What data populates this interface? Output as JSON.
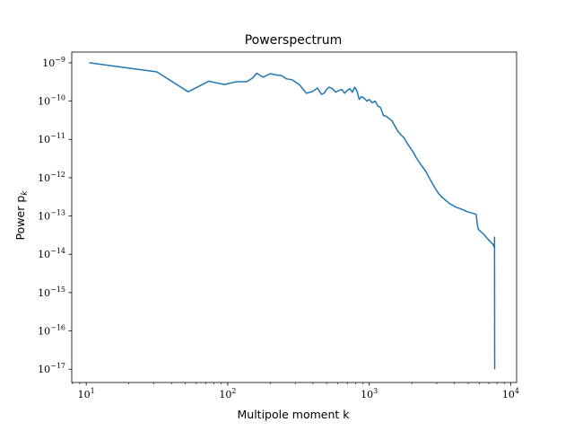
{
  "chart_data": {
    "type": "line",
    "title": "Powerspectrum",
    "xlabel": "Multipole moment k",
    "ylabel_main": "Power p",
    "ylabel_sub": "k",
    "x_scale": "log",
    "y_scale": "log",
    "xlim": [
      7.9,
      11000
    ],
    "ylim": [
      4.5e-18,
      1.9e-09
    ],
    "grid": false,
    "line_color": "#1f77b4",
    "x_ticks": [
      {
        "value": 10,
        "base": "10",
        "exp": "1"
      },
      {
        "value": 100,
        "base": "10",
        "exp": "2"
      },
      {
        "value": 1000,
        "base": "10",
        "exp": "3"
      },
      {
        "value": 10000,
        "base": "10",
        "exp": "4"
      }
    ],
    "y_ticks": [
      {
        "value": 1e-09,
        "base": "10",
        "exp": "−9"
      },
      {
        "value": 1e-10,
        "base": "10",
        "exp": "−10"
      },
      {
        "value": 1e-11,
        "base": "10",
        "exp": "−11"
      },
      {
        "value": 1e-12,
        "base": "10",
        "exp": "−12"
      },
      {
        "value": 1e-13,
        "base": "10",
        "exp": "−13"
      },
      {
        "value": 1e-14,
        "base": "10",
        "exp": "−14"
      },
      {
        "value": 1e-15,
        "base": "10",
        "exp": "−15"
      },
      {
        "value": 1e-16,
        "base": "10",
        "exp": "−16"
      },
      {
        "value": 1e-17,
        "base": "10",
        "exp": "−17"
      }
    ],
    "series": [
      {
        "x": [
          10.5,
          31.5,
          52.5,
          73.5,
          94.5,
          115,
          136,
          150,
          160,
          178,
          200,
          220,
          240,
          260,
          285,
          320,
          360,
          400,
          430,
          460,
          480,
          500,
          520,
          550,
          580,
          610,
          640,
          670,
          700,
          730,
          760,
          790,
          820,
          850,
          880,
          920,
          960,
          1000,
          1050,
          1100,
          1150,
          1200,
          1260,
          1320,
          1380,
          1450,
          1520,
          1600,
          1680,
          1760,
          1850,
          1950,
          2050,
          2150,
          2260,
          2380,
          2500,
          2650,
          2800,
          2950,
          3100,
          3300,
          3500,
          3700,
          3900,
          4100,
          4300,
          4500,
          4700,
          4900,
          5100,
          5300,
          5500,
          5700,
          5800,
          5900,
          6100,
          6300,
          6500,
          6700,
          6900,
          7100,
          7300,
          7500,
          7600,
          7660,
          7680,
          7700
        ],
        "y": [
          1e-09,
          5.8e-10,
          1.75e-10,
          3.3e-10,
          2.7e-10,
          3.2e-10,
          3.2e-10,
          4e-10,
          5.3e-10,
          4.2e-10,
          5.2e-10,
          4.8e-10,
          4.6e-10,
          3.8e-10,
          3.6e-10,
          2.7e-10,
          1.6e-10,
          1.8e-10,
          2.2e-10,
          1.5e-10,
          1.6e-10,
          2e-10,
          2.3e-10,
          2.1e-10,
          1.7e-10,
          1.9e-10,
          2e-10,
          1.6e-10,
          1.9e-10,
          2.1e-10,
          1.7e-10,
          2.3e-10,
          1.8e-10,
          1.1e-10,
          1.3e-10,
          1.2e-10,
          1e-10,
          1.1e-10,
          9e-11,
          1e-10,
          7.5e-11,
          6.8e-11,
          4.2e-11,
          4e-11,
          3.5e-11,
          3e-11,
          2.2e-11,
          1.6e-11,
          1.3e-11,
          1.1e-11,
          8e-12,
          6e-12,
          4.6e-12,
          3.3e-12,
          2.5e-12,
          1.9e-12,
          1.5e-12,
          1e-12,
          7e-13,
          5e-13,
          3.8e-13,
          3e-13,
          2.5e-13,
          2.1e-13,
          1.9e-13,
          1.7e-13,
          1.6e-13,
          1.5e-13,
          1.4e-13,
          1.3e-13,
          1.25e-13,
          1.2e-13,
          1.15e-13,
          1.1e-13,
          6e-14,
          4.5e-14,
          4e-14,
          3.6e-14,
          3.2e-14,
          2.8e-14,
          2.5e-14,
          2.2e-14,
          2e-14,
          1.8e-14,
          1.6e-14,
          1.5e-14,
          2.8e-14,
          1e-17
        ]
      }
    ]
  }
}
